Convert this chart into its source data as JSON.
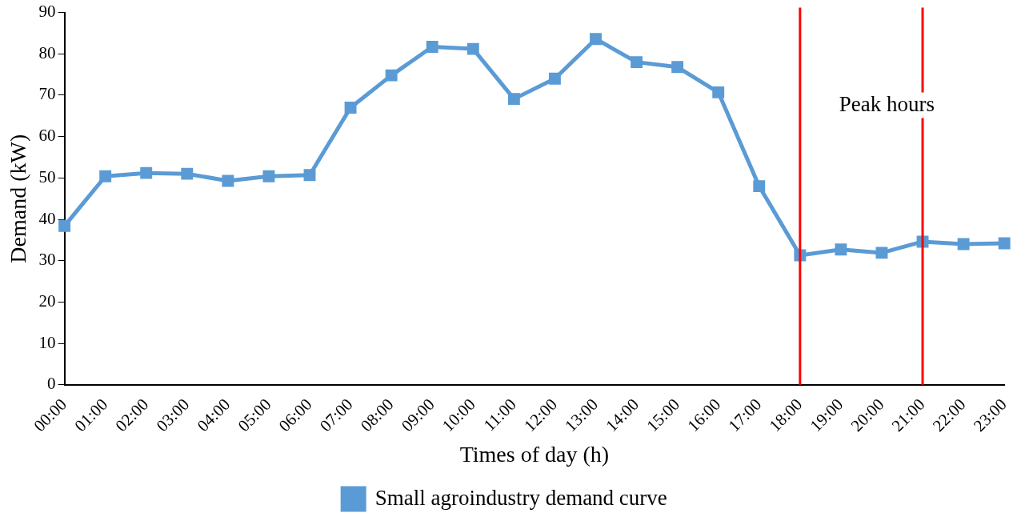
{
  "chart_data": {
    "type": "line",
    "xlabel": "Times of day (h)",
    "ylabel": "Demand (kW)",
    "categories": [
      "00:00",
      "01:00",
      "02:00",
      "03:00",
      "04:00",
      "05:00",
      "06:00",
      "07:00",
      "08:00",
      "09:00",
      "10:00",
      "11:00",
      "12:00",
      "13:00",
      "14:00",
      "15:00",
      "16:00",
      "17:00",
      "18:00",
      "19:00",
      "20:00",
      "21:00",
      "22:00",
      "23:00"
    ],
    "series": [
      {
        "name": "Small agroindustry demand curve",
        "color": "#5b9bd5",
        "values": [
          38.4,
          50.4,
          51.2,
          51,
          49.3,
          50.4,
          50.7,
          67,
          74.8,
          81.7,
          81.2,
          69.1,
          74,
          83.6,
          78,
          76.8,
          70.7,
          48,
          31.3,
          32.7,
          31.9,
          34.6,
          34,
          34.2
        ]
      }
    ],
    "ylim": [
      0,
      90
    ],
    "yticks": [
      0,
      10,
      20,
      30,
      40,
      50,
      60,
      70,
      80,
      90
    ],
    "ref_lines": [
      {
        "axis": "x",
        "value": "18:00",
        "color": "#ff0000"
      },
      {
        "axis": "x",
        "value": "21:00",
        "color": "#ff0000"
      }
    ],
    "annotations": [
      "Peak hours"
    ],
    "grid": false,
    "legend": "bottom",
    "marker": "square",
    "line_style": "solid"
  }
}
